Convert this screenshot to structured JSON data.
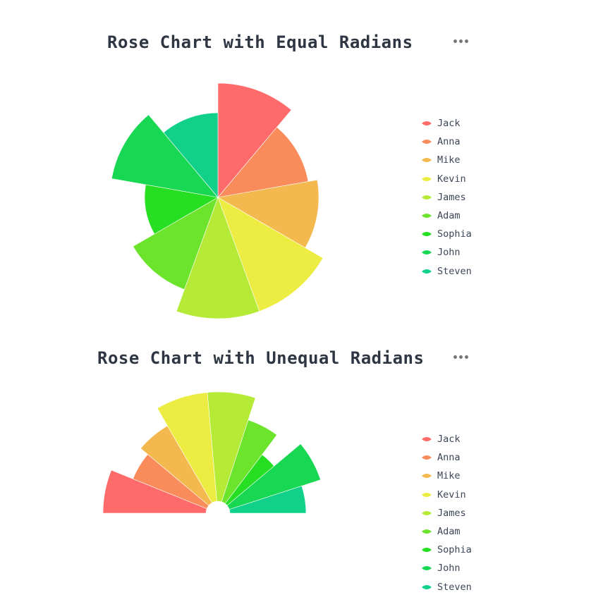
{
  "charts": [
    {
      "title": "Rose Chart with Equal Radians",
      "menu_icon": "more-horizontal-icon",
      "legend": [
        "Jack",
        "Anna",
        "Mike",
        "Kevin",
        "James",
        "Adam",
        "Sophia",
        "John",
        "Steven"
      ]
    },
    {
      "title": "Rose Chart with Unequal Radians",
      "menu_icon": "more-horizontal-icon",
      "legend": [
        "Jack",
        "Anna",
        "Mike",
        "Kevin",
        "James",
        "Adam",
        "Sophia",
        "John",
        "Steven"
      ]
    }
  ],
  "colors": [
    "#ff6a6a",
    "#f98c5a",
    "#f3b94f",
    "#ecec42",
    "#b5ea36",
    "#6de42c",
    "#26df22",
    "#18d753",
    "#10d08a"
  ],
  "chart_data": [
    {
      "type": "pie",
      "subtype": "rose-area",
      "title": "Rose Chart with Equal Radians",
      "categories": [
        "Jack",
        "Anna",
        "Mike",
        "Kevin",
        "James",
        "Adam",
        "Sophia",
        "John",
        "Steven"
      ],
      "values": [
        162,
        130,
        143,
        172,
        172,
        139,
        104,
        153,
        120
      ],
      "angle_per_slice_deg": 40,
      "legend_position": "right"
    },
    {
      "type": "pie",
      "subtype": "rose-radius-half",
      "title": "Rose Chart with Unequal Radians",
      "categories": [
        "Jack",
        "Anna",
        "Mike",
        "Kevin",
        "James",
        "Adam",
        "Sophia",
        "John",
        "Steven"
      ],
      "values": [
        163,
        130,
        143,
        172,
        172,
        139,
        104,
        153,
        125
      ],
      "angles_deg": [
        22,
        18,
        20,
        25,
        23,
        19,
        13,
        22,
        18
      ],
      "legend_position": "right"
    }
  ]
}
